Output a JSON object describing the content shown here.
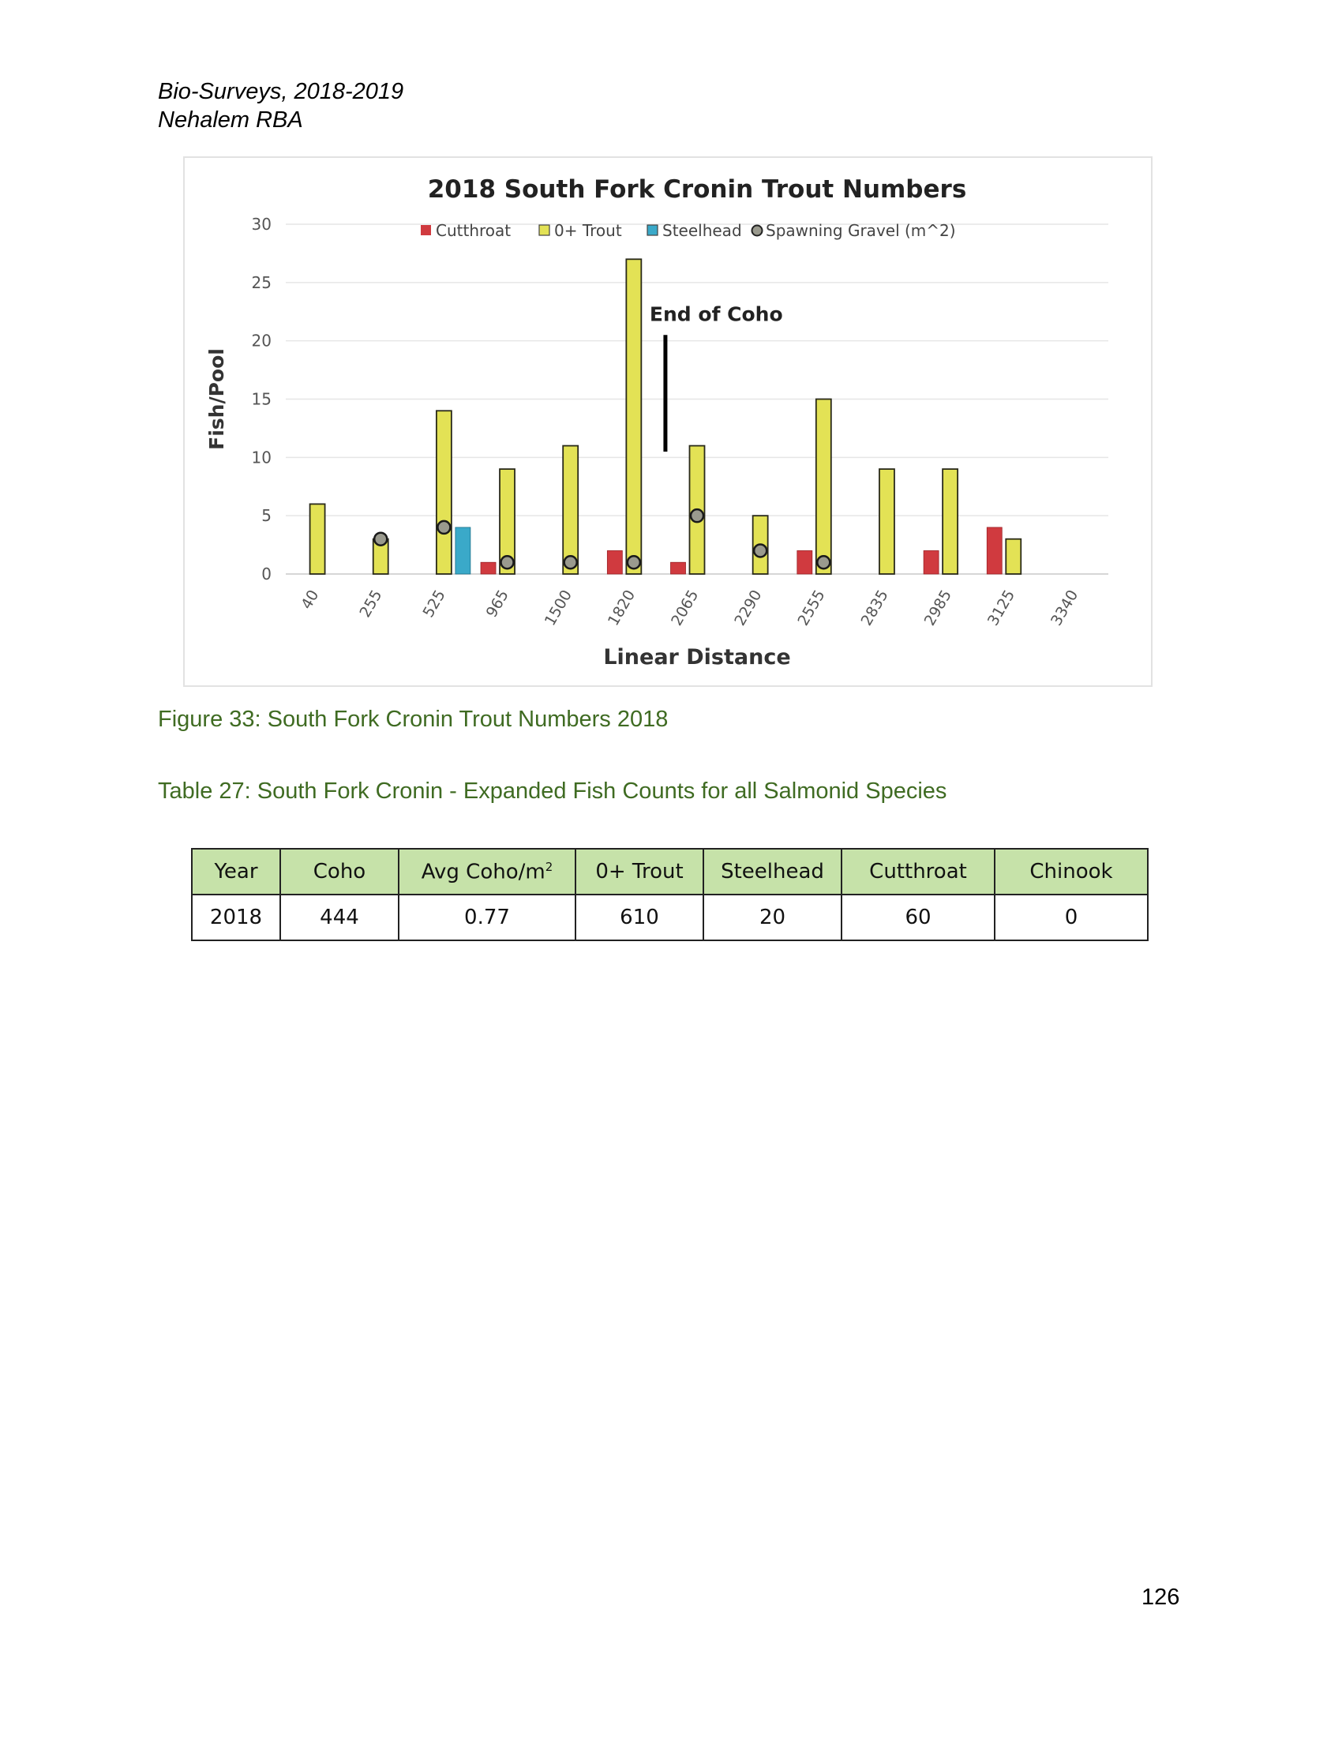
{
  "header": {
    "line1": "Bio-Surveys, 2018-2019",
    "line2": "Nehalem RBA"
  },
  "chart_data": {
    "type": "bar",
    "title": "2018 South Fork Cronin Trout Numbers",
    "xlabel": "Linear Distance",
    "ylabel": "Fish/Pool",
    "ylim": [
      0,
      30
    ],
    "yticks": [
      0,
      5,
      10,
      15,
      20,
      25,
      30
    ],
    "grid": true,
    "legend_position": "top",
    "categories": [
      "40",
      "255",
      "525",
      "965",
      "1500",
      "1820",
      "2065",
      "2290",
      "2555",
      "2835",
      "2985",
      "3125",
      "3340"
    ],
    "series": [
      {
        "name": "Cutthroat",
        "kind": "bar",
        "color": "#d03a3f",
        "values": [
          0,
          0,
          0,
          1,
          0,
          2,
          1,
          0,
          2,
          0,
          2,
          4,
          0
        ]
      },
      {
        "name": "0+ Trout",
        "kind": "bar",
        "color": "#e3e255",
        "values": [
          6,
          3,
          14,
          9,
          11,
          27,
          11,
          5,
          15,
          9,
          9,
          3,
          0
        ]
      },
      {
        "name": "Steelhead",
        "kind": "bar",
        "color": "#3aa9c9",
        "values": [
          0,
          0,
          4,
          0,
          0,
          0,
          0,
          0,
          0,
          0,
          0,
          0,
          0
        ]
      },
      {
        "name": "Spawning Gravel (m^2)",
        "kind": "marker",
        "color": "#9a9a8e",
        "values": [
          null,
          3,
          4,
          1,
          1,
          1,
          5,
          2,
          1,
          null,
          null,
          null,
          null
        ]
      }
    ],
    "annotations": [
      {
        "text": "End of Coho",
        "x_between": [
          "1820",
          "2065"
        ],
        "y_from": 10.5,
        "y_to": 20.5
      }
    ]
  },
  "figure_caption": "Figure 33: South Fork Cronin Trout Numbers 2018",
  "table_caption": "Table 27: South Fork Cronin - Expanded Fish Counts for all Salmonid Species",
  "table": {
    "headers": [
      "Year",
      "Coho",
      "Avg Coho/m",
      "0+ Trout",
      "Steelhead",
      "Cutthroat",
      "Chinook"
    ],
    "avg_superscript": "2",
    "rows": [
      [
        "2018",
        "444",
        "0.77",
        "610",
        "20",
        "60",
        "0"
      ]
    ]
  },
  "page_number": "126"
}
